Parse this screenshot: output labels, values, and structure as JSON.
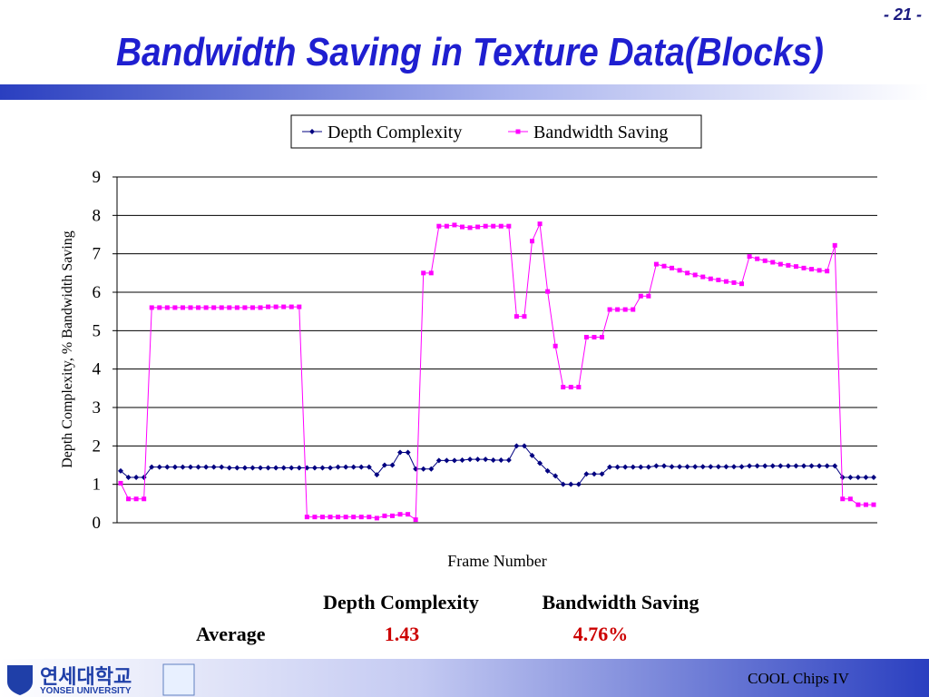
{
  "header": {
    "page": "- 21 -",
    "title": "Bandwidth Saving in Texture Data(Blocks)"
  },
  "chart_data": {
    "type": "line",
    "x_label": "Frame Number",
    "y_label": "Depth Complexity, % Bandwidth Saving",
    "ylim": [
      0,
      9
    ],
    "yticks": [
      0,
      1,
      2,
      3,
      4,
      5,
      6,
      7,
      8,
      9
    ],
    "grid": true,
    "legend": "top",
    "series": [
      {
        "name": "Depth Complexity",
        "color": "#000080",
        "marker": "diamond",
        "values": [
          1.35,
          1.18,
          1.18,
          1.18,
          1.45,
          1.45,
          1.45,
          1.45,
          1.45,
          1.45,
          1.45,
          1.45,
          1.45,
          1.45,
          1.43,
          1.43,
          1.43,
          1.43,
          1.43,
          1.43,
          1.43,
          1.43,
          1.43,
          1.43,
          1.43,
          1.43,
          1.43,
          1.43,
          1.45,
          1.45,
          1.45,
          1.45,
          1.45,
          1.25,
          1.5,
          1.5,
          1.83,
          1.83,
          1.4,
          1.4,
          1.4,
          1.62,
          1.62,
          1.62,
          1.63,
          1.65,
          1.65,
          1.65,
          1.63,
          1.63,
          1.63,
          2.0,
          2.0,
          1.75,
          1.55,
          1.35,
          1.22,
          1.0,
          1.0,
          1.0,
          1.27,
          1.27,
          1.27,
          1.45,
          1.45,
          1.45,
          1.45,
          1.45,
          1.45,
          1.48,
          1.48,
          1.46,
          1.46,
          1.46,
          1.46,
          1.46,
          1.46,
          1.46,
          1.46,
          1.46,
          1.46,
          1.48,
          1.48,
          1.48,
          1.48,
          1.48,
          1.48,
          1.48,
          1.48,
          1.48,
          1.48,
          1.48,
          1.48,
          1.18,
          1.18,
          1.18,
          1.18,
          1.18
        ]
      },
      {
        "name": "Bandwidth Saving",
        "color": "#ff00ff",
        "marker": "square",
        "values": [
          1.03,
          0.62,
          0.62,
          0.62,
          5.6,
          5.6,
          5.6,
          5.6,
          5.6,
          5.6,
          5.6,
          5.6,
          5.6,
          5.6,
          5.6,
          5.6,
          5.6,
          5.6,
          5.6,
          5.62,
          5.62,
          5.62,
          5.62,
          5.62,
          0.15,
          0.15,
          0.15,
          0.15,
          0.15,
          0.15,
          0.15,
          0.15,
          0.15,
          0.12,
          0.18,
          0.18,
          0.22,
          0.22,
          0.08,
          6.5,
          6.5,
          7.72,
          7.72,
          7.75,
          7.7,
          7.68,
          7.7,
          7.72,
          7.72,
          7.72,
          7.72,
          5.37,
          5.37,
          7.33,
          7.78,
          6.02,
          4.6,
          3.53,
          3.53,
          3.53,
          4.83,
          4.83,
          4.83,
          5.55,
          5.55,
          5.55,
          5.55,
          5.9,
          5.9,
          6.73,
          6.68,
          6.63,
          6.57,
          6.5,
          6.45,
          6.4,
          6.35,
          6.32,
          6.28,
          6.25,
          6.22,
          6.93,
          6.87,
          6.82,
          6.78,
          6.73,
          6.7,
          6.67,
          6.63,
          6.6,
          6.57,
          6.55,
          7.22,
          0.62,
          0.62,
          0.47,
          0.47,
          0.47
        ]
      }
    ]
  },
  "summary": {
    "headers": [
      "Depth Complexity",
      "Bandwidth Saving"
    ],
    "row_label": "Average",
    "values": [
      "1.43",
      "4.76%"
    ]
  },
  "footer": {
    "logo_korean": "연세대학교",
    "logo_english": "YONSEI UNIVERSITY",
    "event": "COOL Chips IV"
  }
}
